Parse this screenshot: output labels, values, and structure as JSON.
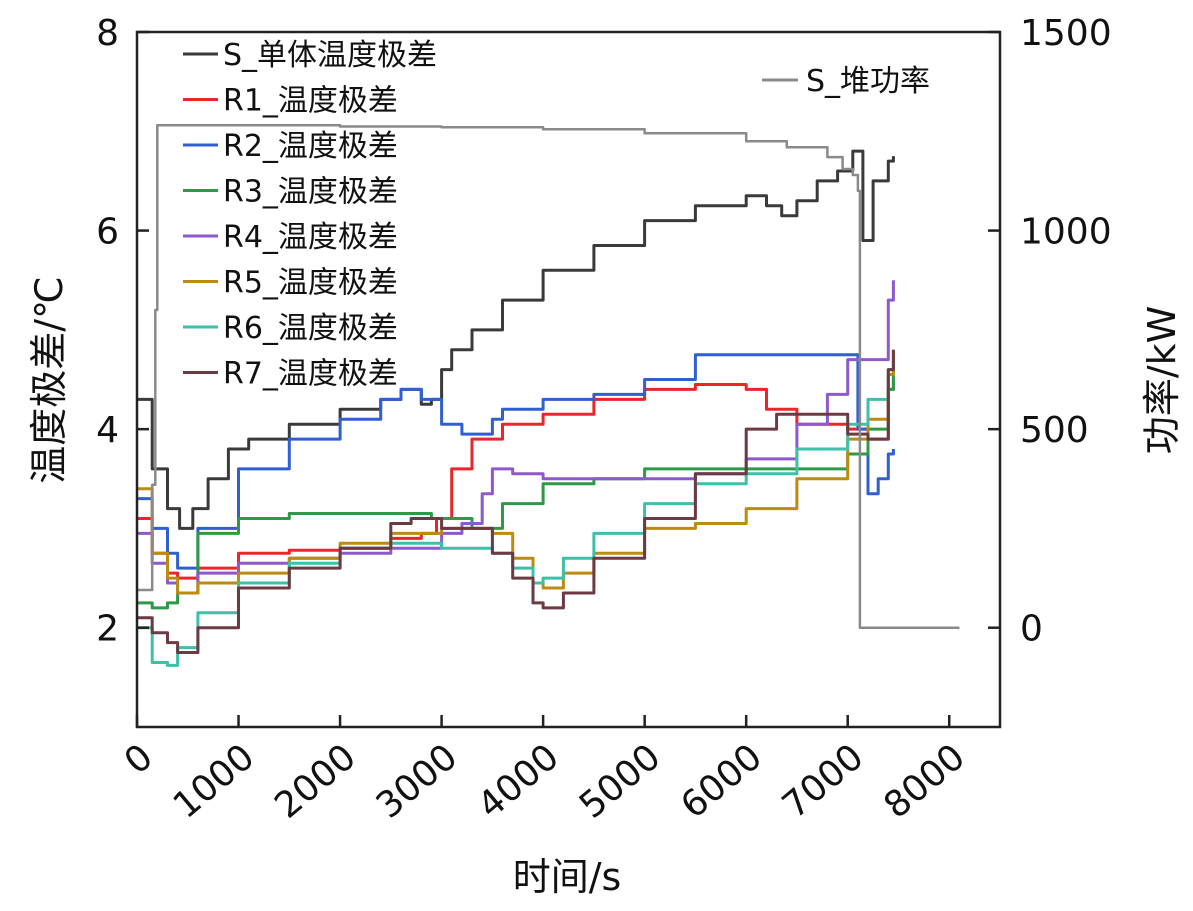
{
  "chart_data": {
    "type": "line",
    "xlabel": "时间/s",
    "ylabel_left": "温度极差/℃",
    "ylabel_right": "功率/kW",
    "xlim": [
      0,
      8500
    ],
    "ylim_left": [
      1,
      8
    ],
    "ylim_right": [
      -250,
      1500
    ],
    "xticks": [
      "0",
      "1000",
      "2000",
      "3000",
      "4000",
      "5000",
      "6000",
      "7000",
      "8000"
    ],
    "yticks_left": [
      "2",
      "4",
      "6",
      "8"
    ],
    "yticks_right": [
      "0",
      "500",
      "1000",
      "1500"
    ],
    "legend_left_position": "top-left",
    "legend_right_position": "top-right",
    "series": [
      {
        "name": "S_单体温度极差",
        "axis": "left",
        "color": "#3a3a3a",
        "x": [
          0,
          150,
          300,
          420,
          550,
          700,
          900,
          1100,
          1500,
          2000,
          2400,
          2600,
          2800,
          2900,
          3000,
          3100,
          3300,
          3600,
          4000,
          4500,
          5000,
          5500,
          6000,
          6200,
          6350,
          6500,
          6700,
          6900,
          7050,
          7150,
          7250,
          7400,
          7450
        ],
        "y": [
          4.3,
          3.6,
          3.2,
          3.0,
          3.2,
          3.5,
          3.8,
          3.9,
          4.05,
          4.2,
          4.3,
          4.4,
          4.25,
          4.3,
          4.6,
          4.8,
          5.0,
          5.3,
          5.6,
          5.85,
          6.1,
          6.25,
          6.35,
          6.25,
          6.15,
          6.3,
          6.5,
          6.6,
          6.8,
          5.9,
          6.5,
          6.7,
          6.75
        ]
      },
      {
        "name": "R1_温度极差",
        "axis": "left",
        "color": "#e8262b",
        "x": [
          0,
          150,
          300,
          400,
          600,
          1000,
          1500,
          2000,
          2500,
          2800,
          2950,
          3100,
          3300,
          3600,
          4000,
          4500,
          5000,
          5500,
          6000,
          6200,
          6500,
          7000,
          7200,
          7400,
          7450
        ],
        "y": [
          3.1,
          2.75,
          2.55,
          2.5,
          2.6,
          2.75,
          2.78,
          2.8,
          2.9,
          2.95,
          3.1,
          3.6,
          3.9,
          4.05,
          4.15,
          4.3,
          4.4,
          4.45,
          4.4,
          4.2,
          4.05,
          4.0,
          3.9,
          4.4,
          4.5
        ]
      },
      {
        "name": "R2_温度极差",
        "axis": "left",
        "color": "#2f5fd0",
        "x": [
          0,
          150,
          300,
          400,
          600,
          1000,
          1500,
          2000,
          2400,
          2600,
          2800,
          3000,
          3200,
          3500,
          3600,
          4000,
          4500,
          5000,
          5500,
          6000,
          6500,
          7000,
          7100,
          7200,
          7300,
          7400,
          7450
        ],
        "y": [
          3.3,
          3.0,
          2.75,
          2.6,
          3.0,
          3.6,
          3.9,
          4.1,
          4.3,
          4.4,
          4.3,
          4.05,
          3.95,
          4.1,
          4.2,
          4.3,
          4.35,
          4.5,
          4.75,
          4.75,
          4.75,
          4.75,
          4.0,
          3.35,
          3.5,
          3.75,
          3.8
        ]
      },
      {
        "name": "R3_温度极差",
        "axis": "left",
        "color": "#2e9a47",
        "x": [
          0,
          150,
          300,
          400,
          600,
          1000,
          1500,
          2000,
          2500,
          2900,
          3000,
          3300,
          3600,
          4000,
          4500,
          5000,
          5500,
          6000,
          6500,
          7000,
          7200,
          7400,
          7450
        ],
        "y": [
          2.25,
          2.2,
          2.25,
          2.35,
          2.95,
          3.1,
          3.15,
          3.15,
          3.15,
          3.1,
          3.1,
          3.0,
          3.25,
          3.45,
          3.5,
          3.6,
          3.6,
          3.6,
          3.6,
          3.75,
          4.0,
          4.4,
          4.6
        ]
      },
      {
        "name": "R4_温度极差",
        "axis": "left",
        "color": "#8d59cc",
        "x": [
          0,
          150,
          300,
          400,
          600,
          1000,
          1500,
          2000,
          2500,
          3000,
          3200,
          3400,
          3500,
          3700,
          4000,
          4500,
          5000,
          5500,
          6000,
          6500,
          6800,
          7000,
          7200,
          7400,
          7450
        ],
        "y": [
          2.95,
          2.65,
          2.45,
          2.35,
          2.55,
          2.65,
          2.7,
          2.75,
          2.8,
          2.95,
          3.05,
          3.35,
          3.6,
          3.55,
          3.5,
          3.5,
          3.5,
          3.55,
          3.7,
          4.05,
          4.35,
          4.7,
          4.7,
          5.3,
          5.5
        ]
      },
      {
        "name": "R5_温度极差",
        "axis": "left",
        "color": "#bd8a12",
        "x": [
          0,
          150,
          300,
          400,
          600,
          1000,
          1500,
          2000,
          2500,
          3000,
          3500,
          3700,
          3900,
          4000,
          4200,
          4500,
          5000,
          5500,
          6000,
          6500,
          7000,
          7200,
          7400,
          7450
        ],
        "y": [
          3.4,
          2.75,
          2.5,
          2.35,
          2.45,
          2.55,
          2.7,
          2.85,
          2.95,
          3.0,
          2.95,
          2.7,
          2.45,
          2.4,
          2.55,
          2.75,
          3.0,
          3.05,
          3.2,
          3.5,
          3.9,
          4.1,
          4.55,
          4.8
        ]
      },
      {
        "name": "R6_温度极差",
        "axis": "left",
        "color": "#3cc0a8",
        "x": [
          0,
          150,
          300,
          400,
          600,
          1000,
          1500,
          2000,
          2500,
          3000,
          3500,
          3700,
          3900,
          4000,
          4200,
          4500,
          5000,
          5500,
          6000,
          6500,
          7000,
          7200,
          7400,
          7450
        ],
        "y": [
          2.0,
          1.65,
          1.62,
          1.8,
          2.15,
          2.45,
          2.65,
          2.8,
          2.85,
          2.8,
          2.75,
          2.6,
          2.45,
          2.5,
          2.7,
          2.95,
          3.25,
          3.45,
          3.55,
          3.8,
          4.05,
          4.3,
          4.6,
          4.7
        ]
      },
      {
        "name": "R7_温度极差",
        "axis": "left",
        "color": "#6b3a42",
        "x": [
          0,
          150,
          300,
          400,
          600,
          1000,
          1500,
          2000,
          2500,
          2700,
          3000,
          3500,
          3700,
          3900,
          4000,
          4200,
          4500,
          5000,
          5500,
          6000,
          6300,
          6500,
          7000,
          7200,
          7400,
          7450
        ],
        "y": [
          2.1,
          1.95,
          1.85,
          1.75,
          2.0,
          2.4,
          2.6,
          2.8,
          3.05,
          3.1,
          3.0,
          2.75,
          2.5,
          2.25,
          2.2,
          2.35,
          2.7,
          3.1,
          3.55,
          4.0,
          4.15,
          4.15,
          3.95,
          3.9,
          4.6,
          4.8
        ]
      },
      {
        "name": "S_堆功率",
        "axis": "right",
        "color": "#8a8a8a",
        "x": [
          0,
          120,
          150,
          180,
          200,
          250,
          500,
          1000,
          2000,
          3000,
          4000,
          5000,
          6000,
          6400,
          6800,
          6950,
          7050,
          7100,
          7120,
          7140,
          7500,
          8000,
          8100
        ],
        "y": [
          95,
          95,
          360,
          800,
          1265,
          1265,
          1265,
          1265,
          1262,
          1260,
          1255,
          1245,
          1225,
          1210,
          1185,
          1155,
          1140,
          1100,
          0,
          0,
          0,
          0,
          0
        ]
      }
    ]
  }
}
